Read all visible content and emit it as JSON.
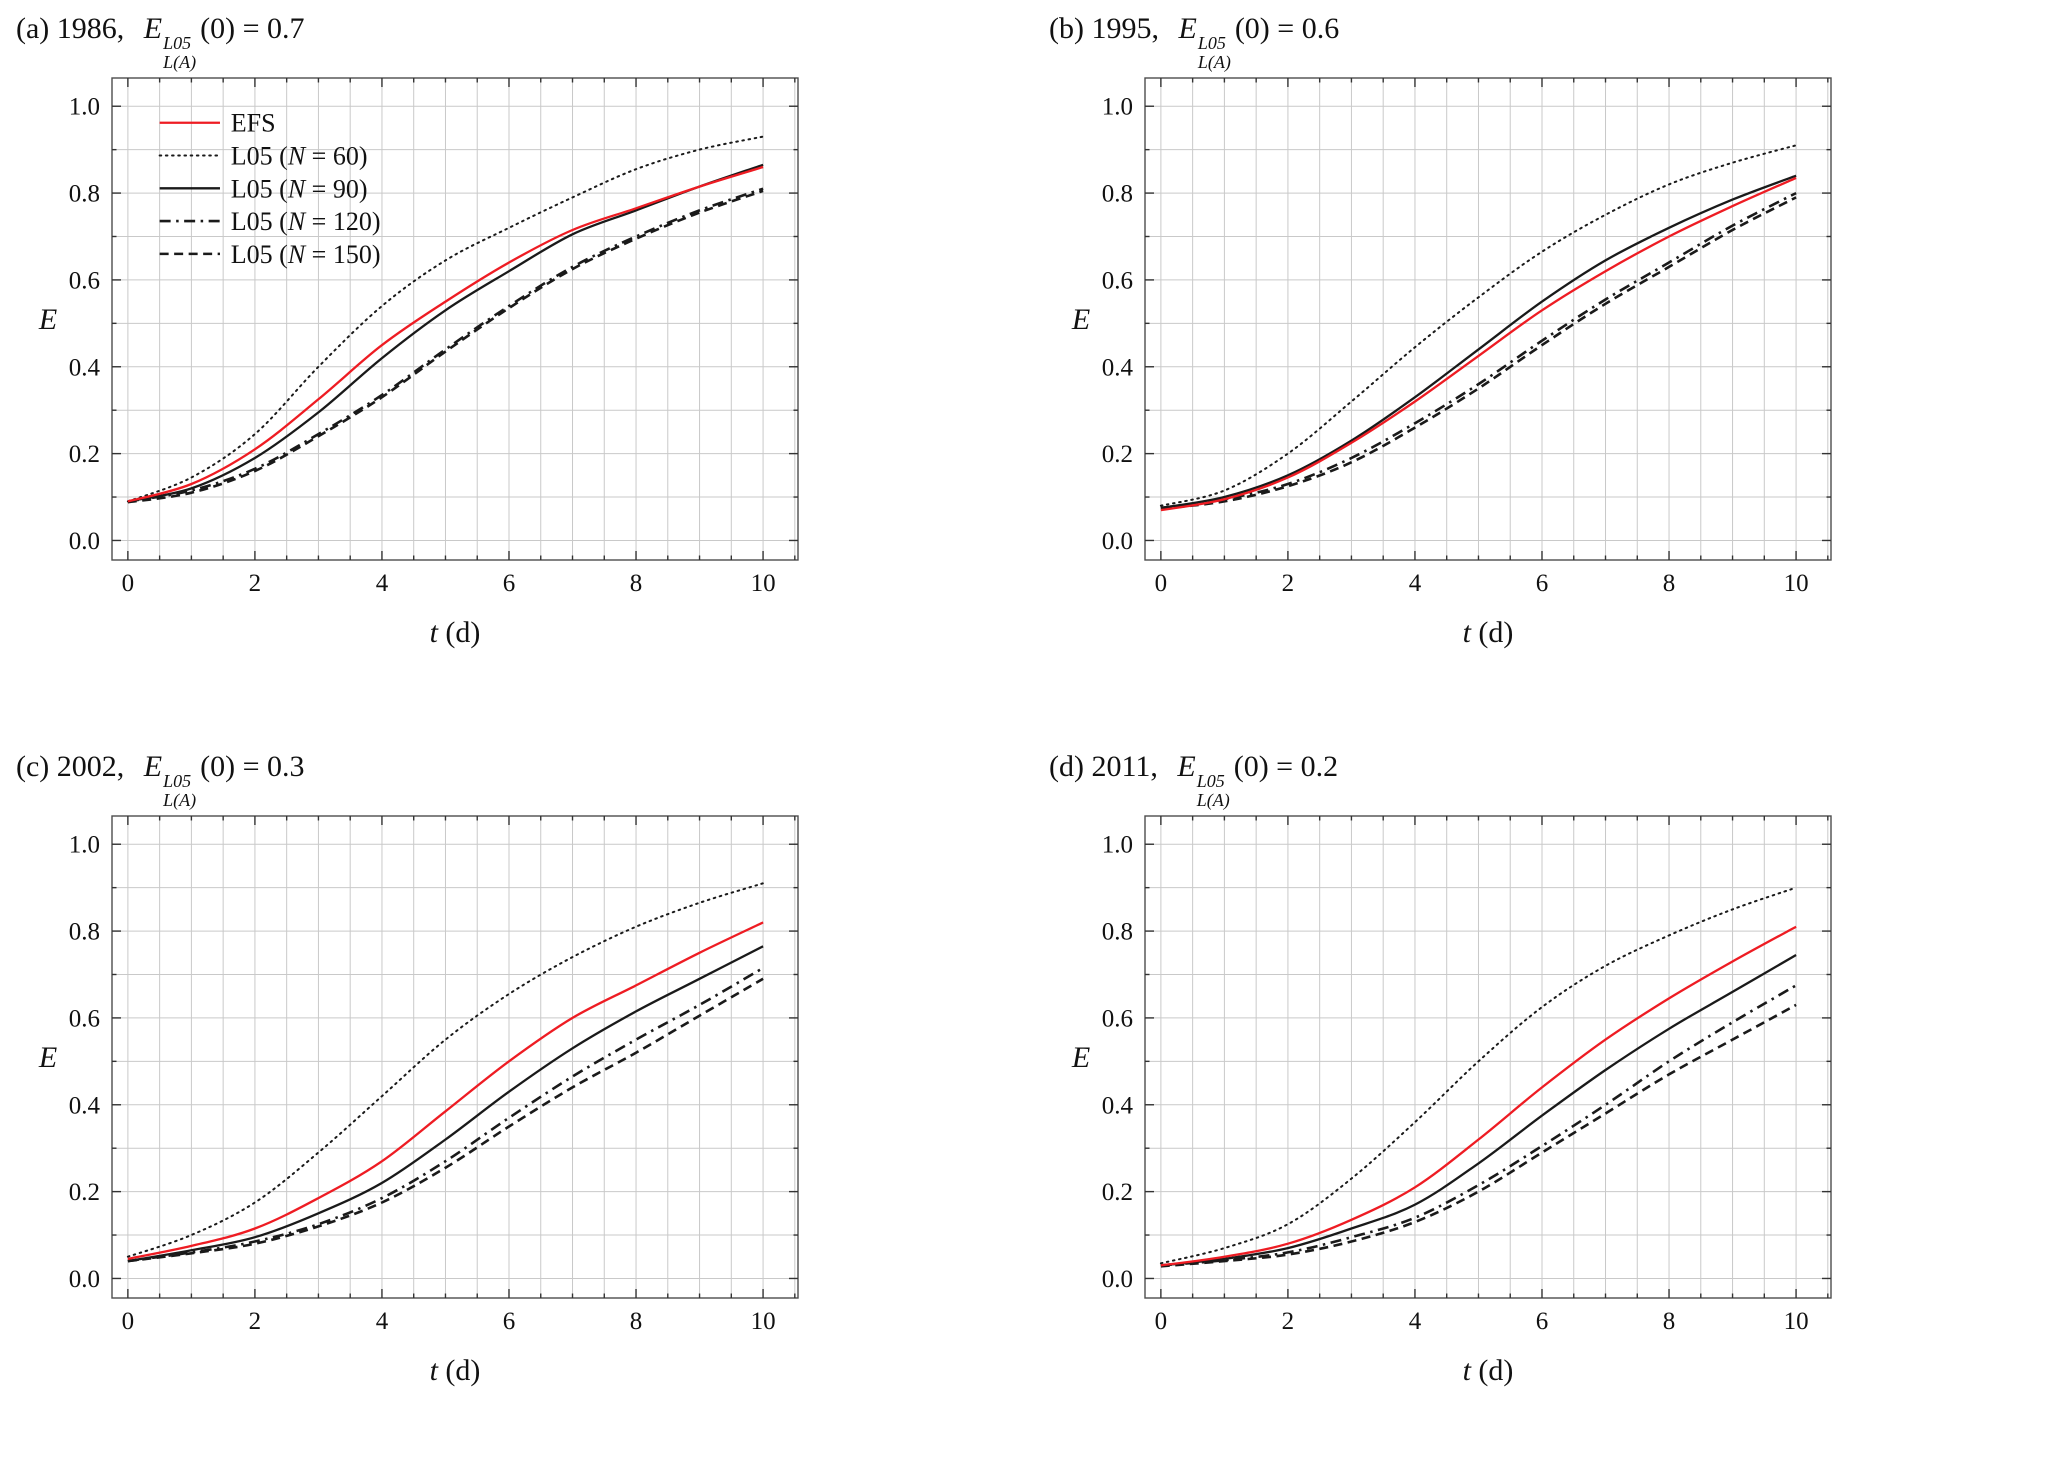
{
  "figure": {
    "background": "#ffffff"
  },
  "grid": {
    "color": "#c9c9c9",
    "frame_color": "#4d4d4d",
    "tick_color": "#333333",
    "x_step": 0.5,
    "y_step": 0.1
  },
  "styles": {
    "efs": {
      "color": "#ee1c23",
      "width": 2.3,
      "dash": "",
      "cap": "butt"
    },
    "dotted": {
      "color": "#1a1a1a",
      "width": 2.0,
      "dash": "1.6 4.6",
      "cap": "round"
    },
    "solid": {
      "color": "#1a1a1a",
      "width": 2.3,
      "dash": "",
      "cap": "butt"
    },
    "dashdot": {
      "color": "#1a1a1a",
      "width": 2.6,
      "dash": "11 5.5 2.5 5.5",
      "cap": "butt"
    },
    "dashed": {
      "color": "#1a1a1a",
      "width": 2.6,
      "dash": "9 5.5",
      "cap": "butt"
    }
  },
  "math": {
    "base": "E",
    "sup": "L05",
    "sub": "L(A)",
    "tail": "(0) = "
  },
  "legend": {
    "entries": [
      {
        "style": "efs",
        "runs": [
          [
            "EFS",
            false
          ]
        ]
      },
      {
        "style": "dotted",
        "runs": [
          [
            "L05 (",
            false
          ],
          [
            "N",
            true
          ],
          [
            " = 60)",
            false
          ]
        ]
      },
      {
        "style": "solid",
        "runs": [
          [
            "L05 (",
            false
          ],
          [
            "N",
            true
          ],
          [
            " = 90)",
            false
          ]
        ]
      },
      {
        "style": "dashdot",
        "runs": [
          [
            "L05 (",
            false
          ],
          [
            "N",
            true
          ],
          [
            " = 120)",
            false
          ]
        ]
      },
      {
        "style": "dashed",
        "runs": [
          [
            "L05 (",
            false
          ],
          [
            "N",
            true
          ],
          [
            " = 150)",
            false
          ]
        ]
      }
    ]
  },
  "chart_data": [
    {
      "id": "a",
      "type": "line",
      "panel_label": "(a)",
      "year": "1986,",
      "e0_value": "0.7",
      "xlabel_var": "t",
      "xlabel_rest": " (d)",
      "ylabel": "E",
      "xlim": [
        -0.25,
        10.55
      ],
      "ylim": [
        -0.045,
        1.065
      ],
      "xticks": [
        0,
        2,
        4,
        6,
        8,
        10
      ],
      "xtick_labels": [
        "0",
        "2",
        "4",
        "6",
        "8",
        "10"
      ],
      "yticks": [
        0,
        0.2,
        0.4,
        0.6,
        0.8,
        1
      ],
      "ytick_labels": [
        "0.0",
        "0.2",
        "0.4",
        "0.6",
        "0.8",
        "1.0"
      ],
      "x": [
        0,
        1,
        2,
        3,
        4,
        5,
        6,
        7,
        8,
        9,
        10
      ],
      "show_legend": true,
      "series": [
        {
          "name": "EFS",
          "style": "efs",
          "values": [
            0.09,
            0.13,
            0.21,
            0.325,
            0.45,
            0.55,
            0.64,
            0.715,
            0.765,
            0.815,
            0.86
          ]
        },
        {
          "name": "L05 (N = 60)",
          "style": "dotted",
          "values": [
            0.09,
            0.145,
            0.245,
            0.4,
            0.54,
            0.645,
            0.72,
            0.79,
            0.855,
            0.9,
            0.93
          ]
        },
        {
          "name": "L05 (N = 90)",
          "style": "solid",
          "values": [
            0.09,
            0.12,
            0.19,
            0.295,
            0.42,
            0.53,
            0.62,
            0.705,
            0.76,
            0.815,
            0.865
          ]
        },
        {
          "name": "L05 (N = 120)",
          "style": "dashdot",
          "values": [
            0.09,
            0.115,
            0.165,
            0.245,
            0.335,
            0.44,
            0.54,
            0.63,
            0.7,
            0.76,
            0.81
          ]
        },
        {
          "name": "L05 (N = 150)",
          "style": "dashed",
          "values": [
            0.088,
            0.11,
            0.16,
            0.24,
            0.33,
            0.435,
            0.535,
            0.625,
            0.695,
            0.755,
            0.805
          ]
        }
      ]
    },
    {
      "id": "b",
      "type": "line",
      "panel_label": "(b)",
      "year": "1995,",
      "e0_value": "0.6",
      "xlabel_var": "t",
      "xlabel_rest": " (d)",
      "ylabel": "E",
      "xlim": [
        -0.25,
        10.55
      ],
      "ylim": [
        -0.045,
        1.065
      ],
      "xticks": [
        0,
        2,
        4,
        6,
        8,
        10
      ],
      "xtick_labels": [
        "0",
        "2",
        "4",
        "6",
        "8",
        "10"
      ],
      "yticks": [
        0,
        0.2,
        0.4,
        0.6,
        0.8,
        1
      ],
      "ytick_labels": [
        "0.0",
        "0.2",
        "0.4",
        "0.6",
        "0.8",
        "1.0"
      ],
      "x": [
        0,
        1,
        2,
        3,
        4,
        5,
        6,
        7,
        8,
        9,
        10
      ],
      "show_legend": false,
      "series": [
        {
          "name": "EFS",
          "style": "efs",
          "values": [
            0.07,
            0.095,
            0.145,
            0.225,
            0.32,
            0.425,
            0.53,
            0.62,
            0.7,
            0.77,
            0.835
          ]
        },
        {
          "name": "L05 (N = 60)",
          "style": "dotted",
          "values": [
            0.08,
            0.115,
            0.2,
            0.32,
            0.445,
            0.56,
            0.665,
            0.75,
            0.82,
            0.87,
            0.91
          ]
        },
        {
          "name": "L05 (N = 90)",
          "style": "solid",
          "values": [
            0.075,
            0.1,
            0.15,
            0.23,
            0.33,
            0.44,
            0.55,
            0.645,
            0.72,
            0.785,
            0.84
          ]
        },
        {
          "name": "L05 (N = 120)",
          "style": "dashdot",
          "values": [
            0.075,
            0.095,
            0.13,
            0.19,
            0.27,
            0.36,
            0.46,
            0.555,
            0.64,
            0.725,
            0.8
          ]
        },
        {
          "name": "L05 (N = 150)",
          "style": "dashed",
          "values": [
            0.073,
            0.09,
            0.125,
            0.18,
            0.26,
            0.35,
            0.45,
            0.545,
            0.63,
            0.715,
            0.79
          ]
        }
      ]
    },
    {
      "id": "c",
      "type": "line",
      "panel_label": "(c)",
      "year": "2002,",
      "e0_value": "0.3",
      "xlabel_var": "t",
      "xlabel_rest": " (d)",
      "ylabel": "E",
      "xlim": [
        -0.25,
        10.55
      ],
      "ylim": [
        -0.045,
        1.065
      ],
      "xticks": [
        0,
        2,
        4,
        6,
        8,
        10
      ],
      "xtick_labels": [
        "0",
        "2",
        "4",
        "6",
        "8",
        "10"
      ],
      "yticks": [
        0,
        0.2,
        0.4,
        0.6,
        0.8,
        1
      ],
      "ytick_labels": [
        "0.0",
        "0.2",
        "0.4",
        "0.6",
        "0.8",
        "1.0"
      ],
      "x": [
        0,
        1,
        2,
        3,
        4,
        5,
        6,
        7,
        8,
        9,
        10
      ],
      "show_legend": false,
      "series": [
        {
          "name": "EFS",
          "style": "efs",
          "values": [
            0.045,
            0.075,
            0.115,
            0.185,
            0.27,
            0.385,
            0.5,
            0.6,
            0.675,
            0.75,
            0.82
          ]
        },
        {
          "name": "L05 (N = 60)",
          "style": "dotted",
          "values": [
            0.05,
            0.1,
            0.175,
            0.29,
            0.42,
            0.55,
            0.655,
            0.74,
            0.81,
            0.865,
            0.91
          ]
        },
        {
          "name": "L05 (N = 90)",
          "style": "solid",
          "values": [
            0.04,
            0.065,
            0.095,
            0.15,
            0.22,
            0.32,
            0.43,
            0.53,
            0.615,
            0.69,
            0.765
          ]
        },
        {
          "name": "L05 (N = 120)",
          "style": "dashdot",
          "values": [
            0.04,
            0.06,
            0.085,
            0.125,
            0.185,
            0.27,
            0.37,
            0.465,
            0.55,
            0.63,
            0.715
          ]
        },
        {
          "name": "L05 (N = 150)",
          "style": "dashed",
          "values": [
            0.04,
            0.058,
            0.08,
            0.12,
            0.175,
            0.255,
            0.35,
            0.44,
            0.52,
            0.605,
            0.69
          ]
        }
      ]
    },
    {
      "id": "d",
      "type": "line",
      "panel_label": "(d)",
      "year": "2011,",
      "e0_value": "0.2",
      "xlabel_var": "t",
      "xlabel_rest": " (d)",
      "ylabel": "E",
      "xlim": [
        -0.25,
        10.55
      ],
      "ylim": [
        -0.045,
        1.065
      ],
      "xticks": [
        0,
        2,
        4,
        6,
        8,
        10
      ],
      "xtick_labels": [
        "0",
        "2",
        "4",
        "6",
        "8",
        "10"
      ],
      "yticks": [
        0,
        0.2,
        0.4,
        0.6,
        0.8,
        1
      ],
      "ytick_labels": [
        "0.0",
        "0.2",
        "0.4",
        "0.6",
        "0.8",
        "1.0"
      ],
      "x": [
        0,
        1,
        2,
        3,
        4,
        5,
        6,
        7,
        8,
        9,
        10
      ],
      "show_legend": false,
      "series": [
        {
          "name": "EFS",
          "style": "efs",
          "values": [
            0.03,
            0.05,
            0.08,
            0.135,
            0.21,
            0.32,
            0.44,
            0.55,
            0.645,
            0.73,
            0.81
          ]
        },
        {
          "name": "L05 (N = 60)",
          "style": "dotted",
          "values": [
            0.035,
            0.07,
            0.125,
            0.23,
            0.36,
            0.5,
            0.625,
            0.72,
            0.79,
            0.85,
            0.9
          ]
        },
        {
          "name": "L05 (N = 90)",
          "style": "solid",
          "values": [
            0.03,
            0.045,
            0.07,
            0.115,
            0.17,
            0.265,
            0.375,
            0.48,
            0.575,
            0.66,
            0.745
          ]
        },
        {
          "name": "L05 (N = 120)",
          "style": "dashdot",
          "values": [
            0.03,
            0.042,
            0.06,
            0.095,
            0.14,
            0.215,
            0.305,
            0.4,
            0.5,
            0.59,
            0.675
          ]
        },
        {
          "name": "L05 (N = 150)",
          "style": "dashed",
          "values": [
            0.028,
            0.04,
            0.055,
            0.085,
            0.13,
            0.2,
            0.29,
            0.38,
            0.47,
            0.55,
            0.63
          ]
        }
      ]
    }
  ]
}
